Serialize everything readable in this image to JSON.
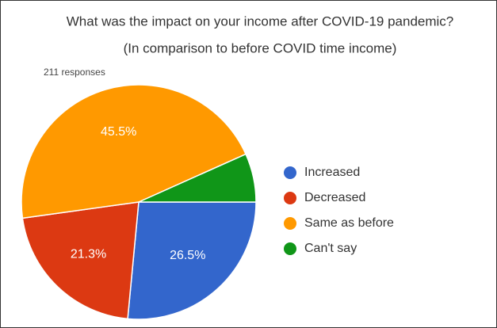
{
  "chart_data": {
    "type": "pie",
    "title": "What was the impact on your income after COVID-19 pandemic?",
    "subtitle": "(In comparison to before COVID time income)",
    "note": "211 responses",
    "categories": [
      "Increased",
      "Decreased",
      "Same as before",
      "Can't say"
    ],
    "values": [
      26.5,
      21.3,
      45.5,
      6.7
    ],
    "value_labels": [
      "26.5%",
      "21.3%",
      "45.5%",
      null
    ],
    "colors": [
      "#3366cc",
      "#dc3912",
      "#ff9900",
      "#109618"
    ],
    "legend": "right"
  }
}
